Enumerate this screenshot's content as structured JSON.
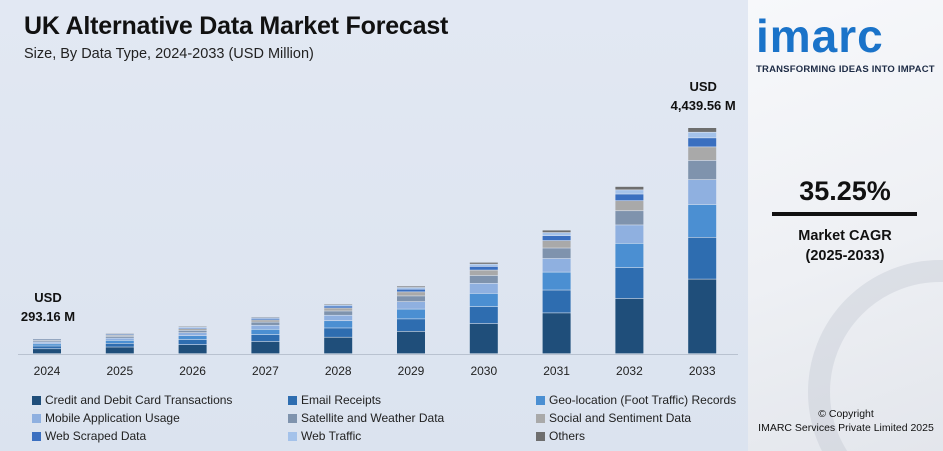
{
  "header": {
    "title": "UK Alternative Data Market Forecast",
    "subtitle": "Size, By Data Type, 2024-2033 (USD Million)"
  },
  "brand": {
    "logo": "imarc",
    "tagline": "TRANSFORMING IDEAS INTO IMPACT",
    "color": "#1a73c9"
  },
  "cagr": {
    "value": "35.25%",
    "label": "Market CAGR",
    "period": "(2025-2033)"
  },
  "footer": {
    "copyright": "© Copyright",
    "company": "IMARC Services Private Limited 2025"
  },
  "chart_data": {
    "type": "bar",
    "stacked": true,
    "categories": [
      "2024",
      "2025",
      "2026",
      "2027",
      "2028",
      "2029",
      "2030",
      "2031",
      "2032",
      "2033"
    ],
    "totals": [
      293.16,
      396.5,
      536.3,
      725.4,
      981.2,
      1327.2,
      1795.1,
      2428.0,
      3284.1,
      4439.56
    ],
    "annotations": [
      {
        "category": "2024",
        "line1": "USD",
        "line2": "293.16 M"
      },
      {
        "category": "2033",
        "line1": "USD",
        "line2": "4,439.56 M"
      }
    ],
    "series": [
      {
        "name": "Credit and Debit Card Transactions",
        "color": "#1f4e7a",
        "share": 0.33
      },
      {
        "name": "Email Receipts",
        "color": "#2e6db0",
        "share": 0.185
      },
      {
        "name": "Geo-location (Foot Traffic) Records",
        "color": "#4b8fd2",
        "share": 0.145
      },
      {
        "name": "Mobile Application Usage",
        "color": "#8fb0e0",
        "share": 0.11
      },
      {
        "name": "Satellite and Weather Data",
        "color": "#7f93ad",
        "share": 0.085
      },
      {
        "name": "Social and Sentiment Data",
        "color": "#a9a9a9",
        "share": 0.06
      },
      {
        "name": "Web Scraped Data",
        "color": "#3a6fc0",
        "share": 0.04
      },
      {
        "name": "Web Traffic",
        "color": "#a4c2ea",
        "share": 0.025
      },
      {
        "name": "Others",
        "color": "#6e6e6e",
        "share": 0.02
      }
    ],
    "ylim": [
      0,
      4439.56
    ],
    "grid": false,
    "legend_position": "bottom"
  }
}
